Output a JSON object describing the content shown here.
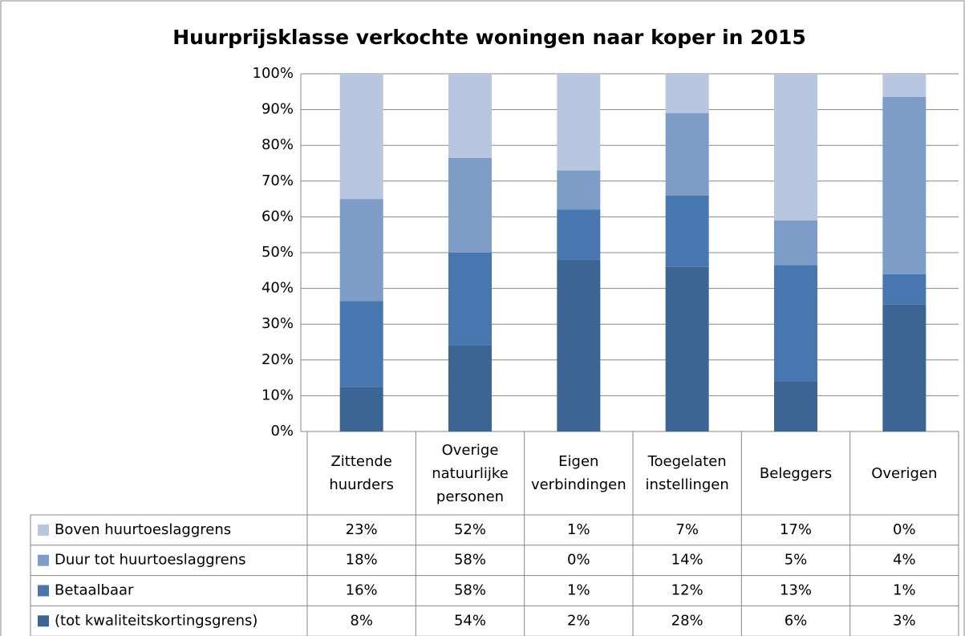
{
  "chart_data": {
    "type": "stacked_bar",
    "title": "Huurprijsklasse verkochte woningen naar koper in 2015",
    "categories": [
      "Zittende huurders",
      "Overige natuurlijke personen",
      "Eigen verbindingen",
      "Toegelaten instellingen",
      "Beleggers",
      "Overigen"
    ],
    "series": [
      {
        "name": "Boven huurtoeslaggrens",
        "color": "#b9c6e0",
        "values": [
          35,
          23.5,
          27,
          11,
          41,
          6.5
        ]
      },
      {
        "name": "Duur tot huurtoeslaggrens",
        "color": "#7e9cc8",
        "values": [
          28.5,
          26.5,
          11,
          23,
          12.5,
          49.5
        ]
      },
      {
        "name": "Betaalbaar",
        "color": "#4877b0",
        "values": [
          24,
          26,
          14,
          20,
          32.5,
          8.5
        ]
      },
      {
        "name": "(tot kwaliteitskortingsgrens)",
        "color": "#3d6594",
        "values": [
          12.5,
          24,
          48,
          46,
          14,
          35.5
        ]
      }
    ],
    "data_table": [
      [
        "23%",
        "52%",
        "1%",
        "7%",
        "17%",
        "0%"
      ],
      [
        "18%",
        "58%",
        "0%",
        "14%",
        "5%",
        "4%"
      ],
      [
        "16%",
        "58%",
        "1%",
        "12%",
        "13%",
        "1%"
      ],
      [
        "8%",
        "54%",
        "2%",
        "28%",
        "6%",
        "3%"
      ]
    ],
    "ylim": [
      0,
      100
    ],
    "yticks": [
      {
        "value": 0,
        "label": "0%"
      },
      {
        "value": 10,
        "label": "10%"
      },
      {
        "value": 20,
        "label": "20%"
      },
      {
        "value": 30,
        "label": "30%"
      },
      {
        "value": 40,
        "label": "40%"
      },
      {
        "value": 50,
        "label": "50%"
      },
      {
        "value": 60,
        "label": "60%"
      },
      {
        "value": 70,
        "label": "70%"
      },
      {
        "value": 80,
        "label": "80%"
      },
      {
        "value": 90,
        "label": "90%"
      },
      {
        "value": 100,
        "label": "100%"
      }
    ],
    "grid": true
  }
}
